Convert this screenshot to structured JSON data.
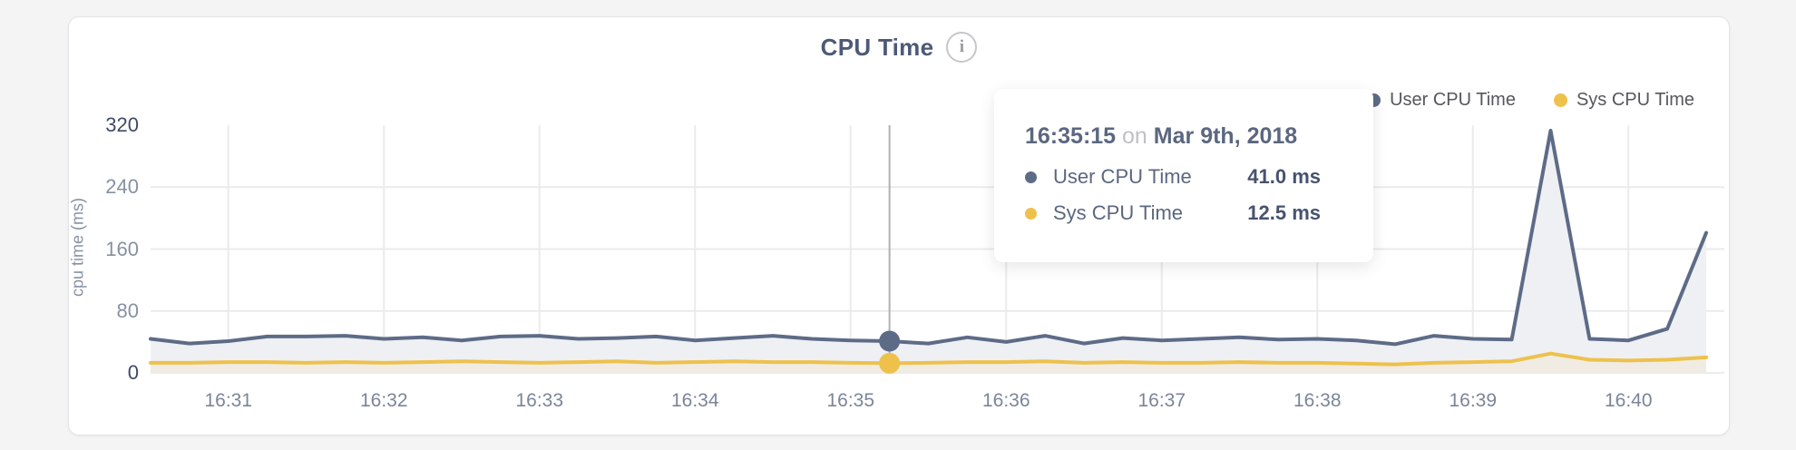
{
  "header": {
    "title": "CPU Time",
    "info_icon": "i"
  },
  "legend": {
    "items": [
      {
        "label": "User CPU Time",
        "color": "#5d6b87"
      },
      {
        "label": "Sys CPU Time",
        "color": "#eec14c"
      }
    ]
  },
  "tooltip": {
    "time": "16:35:15",
    "conj": "on",
    "date": "Mar 9th, 2018",
    "rows": [
      {
        "label": "User CPU Time",
        "value": "41.0 ms",
        "color": "#5d6b87"
      },
      {
        "label": "Sys CPU Time",
        "value": "12.5 ms",
        "color": "#eec14c"
      }
    ]
  },
  "chart_data": {
    "type": "area",
    "title": "CPU Time",
    "xlabel": "",
    "ylabel": "cpu time (ms)",
    "ylim": [
      0,
      320
    ],
    "yticks": [
      0,
      80,
      160,
      240,
      320
    ],
    "xticks": [
      "16:31",
      "16:32",
      "16:33",
      "16:34",
      "16:35",
      "16:36",
      "16:37",
      "16:38",
      "16:39",
      "16:40"
    ],
    "x_start": "16:30:30",
    "x_end": "16:40:30",
    "interval_seconds": 15,
    "x_tick_start_index": 2,
    "x_tick_step": 4,
    "grid": true,
    "legend_position": "top-right",
    "hover_index": 19,
    "hover_time": "16:35:15",
    "colors": {
      "grid": "#ebebed",
      "hover_line": "#b0b1b3"
    },
    "series": [
      {
        "name": "User CPU Time",
        "color": "#5d6b87",
        "fill": "#eef0f4",
        "values": [
          44,
          38,
          41,
          47,
          47,
          48,
          44,
          46,
          42,
          47,
          48,
          44,
          45,
          47,
          42,
          45,
          48,
          44,
          42,
          41,
          38,
          46,
          40,
          48,
          38,
          45,
          42,
          44,
          46,
          43,
          44,
          42,
          37,
          48,
          44,
          43,
          313,
          44,
          42,
          57,
          181
        ]
      },
      {
        "name": "Sys CPU Time",
        "color": "#eec14c",
        "fill": "#f0ece3",
        "values": [
          13,
          13,
          14,
          14,
          13,
          14,
          13,
          14,
          15,
          14,
          13,
          14,
          15,
          13,
          14,
          15,
          14,
          14,
          13,
          12.5,
          13,
          14,
          14,
          15,
          13,
          14,
          13,
          13,
          14,
          13,
          13,
          12,
          11,
          13,
          14,
          15,
          25,
          17,
          16,
          17,
          20
        ]
      }
    ]
  }
}
